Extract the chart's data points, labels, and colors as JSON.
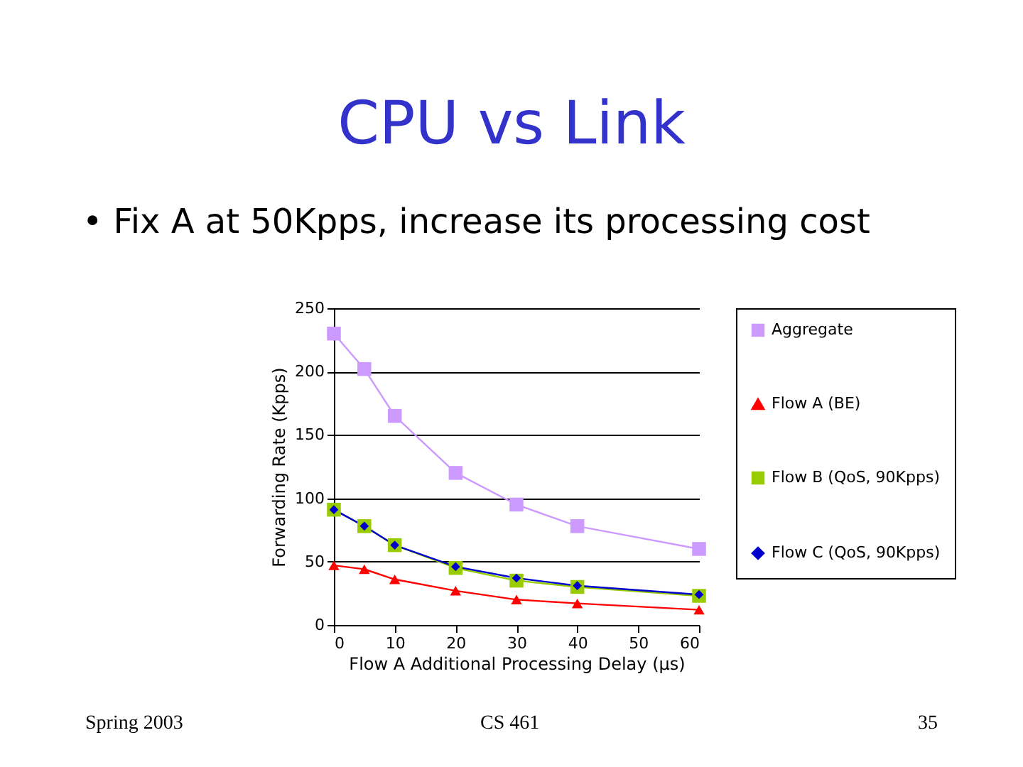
{
  "chart_data": {
    "type": "line",
    "title": "CPU vs Link",
    "subtitle": "• Fix A at 50Kpps, increase its processing cost",
    "xlabel": "Flow A Additional Processing Delay (µs)",
    "ylabel": "Forwarding Rate (Kpps)",
    "x": [
      0,
      5,
      10,
      20,
      30,
      40,
      60
    ],
    "series": [
      {
        "name": "Aggregate",
        "color": "#cc99ff",
        "marker": "square",
        "values": [
          230,
          202,
          165,
          120,
          95,
          78,
          60
        ]
      },
      {
        "name": "Flow A (BE)",
        "color": "#ff0000",
        "marker": "triangle",
        "values": [
          47,
          44,
          36,
          27,
          20,
          17,
          12
        ]
      },
      {
        "name": "Flow B (QoS, 90Kpps)",
        "color": "#99cc00",
        "marker": "square",
        "values": [
          91,
          78,
          63,
          45,
          35,
          30,
          23
        ]
      },
      {
        "name": "Flow C (QoS, 90Kpps)",
        "color": "#0000cc",
        "marker": "diamond",
        "values": [
          91,
          78,
          63,
          46,
          37,
          31,
          24
        ]
      }
    ],
    "xlim": [
      0,
      60
    ],
    "xticks": [
      0,
      10,
      20,
      30,
      40,
      50,
      60
    ],
    "ylim": [
      0,
      250
    ],
    "yticks": [
      0,
      50,
      100,
      150,
      200,
      250
    ],
    "grid": "y",
    "legend": "right",
    "line_style": "solid",
    "annotations": [
      "Spring 2003",
      "CS 461",
      "35"
    ]
  }
}
